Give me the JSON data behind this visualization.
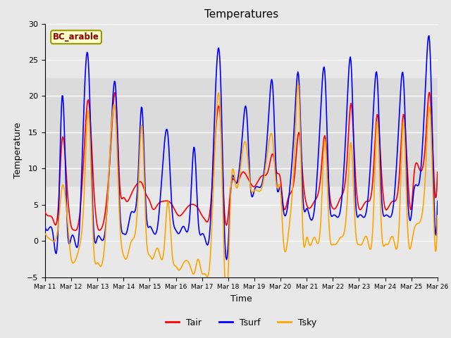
{
  "title": "Temperatures",
  "xlabel": "Time",
  "ylabel": "Temperature",
  "ylim": [
    -5,
    30
  ],
  "xlim": [
    0,
    15
  ],
  "annotation_text": "BC_arable",
  "annotation_color": "#8B0000",
  "annotation_bg": "#FFFFCC",
  "annotation_edge": "#999900",
  "plot_bg_color": "#E8E8E8",
  "fig_bg_color": "#E8E8E8",
  "tair_color": "#FF0000",
  "tsurf_color": "#0000FF",
  "tsky_color": "#FFA500",
  "line_width": 1.2,
  "shaded_band_lo": 7.5,
  "shaded_band_hi": 22.5,
  "x_tick_labels": [
    "Mar 11",
    "Mar 12",
    "Mar 13",
    "Mar 14",
    "Mar 15",
    "Mar 16",
    "Mar 17",
    "Mar 18",
    "Mar 19",
    "Mar 20",
    "Mar 21",
    "Mar 22",
    "Mar 23",
    "Mar 24",
    "Mar 25",
    "Mar 26"
  ],
  "yticks": [
    -5,
    0,
    5,
    10,
    15,
    20,
    25,
    30
  ],
  "legend_labels": [
    "Tair",
    "Tsurf",
    "Tsky"
  ],
  "tair_ctrl_x": [
    0.0,
    0.1,
    0.3,
    0.5,
    0.65,
    0.85,
    1.0,
    1.1,
    1.3,
    1.5,
    1.65,
    1.85,
    2.0,
    2.1,
    2.3,
    2.55,
    2.7,
    2.85,
    3.0,
    3.1,
    3.3,
    3.55,
    3.7,
    3.85,
    4.0,
    4.1,
    4.3,
    4.55,
    4.7,
    4.85,
    5.0,
    5.1,
    5.3,
    5.55,
    5.7,
    5.85,
    6.0,
    6.1,
    6.3,
    6.55,
    6.7,
    6.85,
    7.0,
    7.1,
    7.3,
    7.55,
    7.7,
    7.85,
    8.0,
    8.1,
    8.3,
    8.55,
    8.7,
    8.85,
    9.0,
    9.1,
    9.3,
    9.55,
    9.7,
    9.85,
    10.0,
    10.1,
    10.3,
    10.55,
    10.7,
    10.85,
    11.0,
    11.1,
    11.3,
    11.55,
    11.7,
    11.85,
    12.0,
    12.1,
    12.3,
    12.55,
    12.7,
    12.85,
    13.0,
    13.1,
    13.3,
    13.55,
    13.7,
    13.85,
    14.0,
    14.1,
    14.3,
    14.55,
    14.7,
    14.85,
    15.0
  ],
  "tair_ctrl_y": [
    4.0,
    3.5,
    3.0,
    4.5,
    14.0,
    7.0,
    2.0,
    1.5,
    3.0,
    13.0,
    19.5,
    8.0,
    2.0,
    1.5,
    4.0,
    15.5,
    20.0,
    8.0,
    6.0,
    5.5,
    6.5,
    8.0,
    8.0,
    6.5,
    5.5,
    4.5,
    5.0,
    5.5,
    5.5,
    5.0,
    4.0,
    3.5,
    4.0,
    5.0,
    5.0,
    4.5,
    3.5,
    3.0,
    4.0,
    16.5,
    17.0,
    4.5,
    3.5,
    7.5,
    8.0,
    9.5,
    9.0,
    8.0,
    7.5,
    8.0,
    9.0,
    10.0,
    12.0,
    9.5,
    8.5,
    5.0,
    6.0,
    9.5,
    15.0,
    9.0,
    5.0,
    4.5,
    5.5,
    9.5,
    14.5,
    7.5,
    4.5,
    4.5,
    6.0,
    11.5,
    19.0,
    10.0,
    4.5,
    4.5,
    5.5,
    9.5,
    17.5,
    10.0,
    4.5,
    4.5,
    5.5,
    9.5,
    17.5,
    10.0,
    4.5,
    9.0,
    10.0,
    14.0,
    20.5,
    10.0,
    9.5
  ],
  "tsurf_ctrl_x": [
    0.0,
    0.1,
    0.3,
    0.5,
    0.65,
    0.85,
    1.0,
    1.1,
    1.3,
    1.5,
    1.65,
    1.85,
    2.0,
    2.1,
    2.3,
    2.55,
    2.7,
    2.85,
    3.0,
    3.1,
    3.3,
    3.55,
    3.7,
    3.85,
    4.0,
    4.1,
    4.3,
    4.55,
    4.7,
    4.85,
    5.0,
    5.1,
    5.3,
    5.55,
    5.7,
    5.85,
    6.0,
    6.1,
    6.3,
    6.55,
    6.7,
    6.85,
    7.0,
    7.1,
    7.3,
    7.55,
    7.7,
    7.85,
    8.0,
    8.1,
    8.3,
    8.55,
    8.7,
    8.85,
    9.0,
    9.1,
    9.3,
    9.55,
    9.7,
    9.85,
    10.0,
    10.1,
    10.3,
    10.55,
    10.7,
    10.85,
    11.0,
    11.1,
    11.3,
    11.55,
    11.7,
    11.85,
    12.0,
    12.1,
    12.3,
    12.55,
    12.7,
    12.85,
    13.0,
    13.1,
    13.3,
    13.55,
    13.7,
    13.85,
    14.0,
    14.1,
    14.3,
    14.55,
    14.7,
    14.85,
    15.0
  ],
  "tsurf_ctrl_y": [
    2.0,
    1.5,
    1.0,
    2.0,
    20.0,
    2.0,
    0.5,
    0.5,
    1.0,
    20.0,
    25.0,
    2.0,
    0.5,
    0.5,
    1.5,
    17.0,
    21.0,
    5.0,
    1.0,
    1.0,
    4.0,
    8.5,
    18.5,
    5.0,
    2.0,
    1.5,
    2.0,
    13.0,
    14.5,
    4.5,
    1.5,
    1.0,
    2.0,
    4.5,
    13.0,
    3.0,
    1.0,
    0.5,
    1.5,
    23.5,
    23.5,
    2.0,
    -0.5,
    7.0,
    8.0,
    15.0,
    18.0,
    7.5,
    7.0,
    7.5,
    8.0,
    17.5,
    21.5,
    8.0,
    7.5,
    4.5,
    5.5,
    17.5,
    22.5,
    6.5,
    4.5,
    3.5,
    4.5,
    19.0,
    23.0,
    7.0,
    3.5,
    3.5,
    4.5,
    19.0,
    24.5,
    7.0,
    3.5,
    3.5,
    4.5,
    18.0,
    22.5,
    7.0,
    3.5,
    3.5,
    4.5,
    18.0,
    22.5,
    7.0,
    3.5,
    7.0,
    8.0,
    22.0,
    27.5,
    8.0,
    5.5
  ],
  "tsky_ctrl_x": [
    0.0,
    0.1,
    0.3,
    0.5,
    0.65,
    0.85,
    1.0,
    1.1,
    1.3,
    1.5,
    1.65,
    1.85,
    2.0,
    2.1,
    2.3,
    2.55,
    2.7,
    2.85,
    3.0,
    3.1,
    3.3,
    3.55,
    3.7,
    3.85,
    4.0,
    4.1,
    4.3,
    4.55,
    4.7,
    4.85,
    5.0,
    5.1,
    5.3,
    5.55,
    5.7,
    5.85,
    6.0,
    6.1,
    6.3,
    6.55,
    6.7,
    6.85,
    7.0,
    7.1,
    7.3,
    7.55,
    7.7,
    7.85,
    8.0,
    8.1,
    8.3,
    8.55,
    8.7,
    8.85,
    9.0,
    9.1,
    9.3,
    9.55,
    9.7,
    9.85,
    10.0,
    10.1,
    10.3,
    10.55,
    10.7,
    10.85,
    11.0,
    11.1,
    11.3,
    11.55,
    11.7,
    11.85,
    12.0,
    12.1,
    12.3,
    12.55,
    12.7,
    12.85,
    13.0,
    13.1,
    13.3,
    13.55,
    13.7,
    13.85,
    14.0,
    14.1,
    14.3,
    14.55,
    14.7,
    14.85,
    15.0
  ],
  "tsky_ctrl_y": [
    1.0,
    0.5,
    0.0,
    2.0,
    7.5,
    3.0,
    -2.5,
    -3.0,
    -1.0,
    7.0,
    18.0,
    -0.5,
    -3.0,
    -3.5,
    0.5,
    16.5,
    17.0,
    3.0,
    -2.0,
    -2.5,
    0.0,
    6.0,
    16.0,
    2.0,
    -2.0,
    -2.5,
    -1.0,
    -1.0,
    5.5,
    -1.5,
    -3.5,
    -4.0,
    -3.0,
    -3.5,
    -4.5,
    -2.5,
    -4.5,
    -4.5,
    -3.0,
    17.5,
    17.5,
    -3.0,
    -4.5,
    7.0,
    7.5,
    12.5,
    13.0,
    7.5,
    7.0,
    7.0,
    7.5,
    13.5,
    14.0,
    7.5,
    7.0,
    0.5,
    1.0,
    13.5,
    21.0,
    1.5,
    0.5,
    -0.5,
    0.5,
    3.5,
    14.0,
    2.5,
    -0.5,
    -0.5,
    0.5,
    5.5,
    13.5,
    2.5,
    -0.5,
    -0.5,
    0.5,
    3.5,
    16.5,
    2.5,
    -0.5,
    -0.5,
    0.5,
    3.5,
    16.5,
    2.5,
    -0.5,
    1.5,
    2.5,
    10.0,
    18.5,
    4.0,
    3.5
  ]
}
